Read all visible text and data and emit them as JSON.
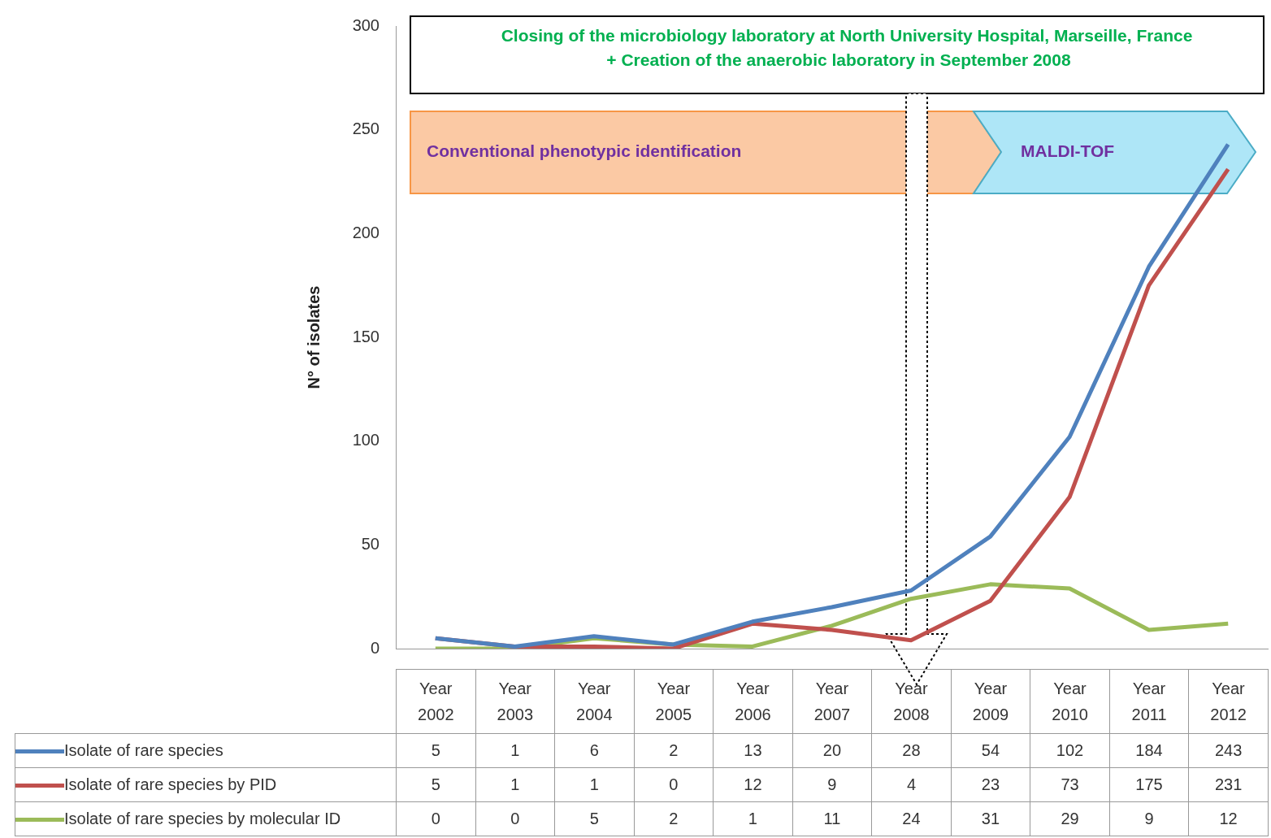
{
  "chart_data": {
    "type": "line",
    "ylabel": "N° of isolates",
    "categories": [
      "Year 2002",
      "Year 2003",
      "Year 2004",
      "Year 2005",
      "Year 2006",
      "Year 2007",
      "Year 2008",
      "Year 2009",
      "Year 2010",
      "Year 2011",
      "Year 2012"
    ],
    "series": [
      {
        "name": "Isolate of rare species",
        "color": "#4f81bd",
        "values": [
          5,
          1,
          6,
          2,
          13,
          20,
          28,
          54,
          102,
          184,
          243
        ]
      },
      {
        "name": "Isolate of rare species by PID",
        "color": "#c0504d",
        "values": [
          5,
          1,
          1,
          0,
          12,
          9,
          4,
          23,
          73,
          175,
          231
        ]
      },
      {
        "name": "Isolate of rare species by molecular ID",
        "color": "#9bbb59",
        "values": [
          0,
          0,
          5,
          2,
          1,
          11,
          24,
          31,
          29,
          9,
          12
        ]
      }
    ],
    "ylim": [
      0,
      300
    ],
    "yticks": [
      0,
      50,
      100,
      150,
      200,
      250,
      300
    ],
    "grid": false,
    "marker": "none",
    "legend": "bottom left",
    "data_labels": true,
    "annotations": [
      "Closing of the microbiology laboratory at North University Hospital, Marseille, France",
      "+ Creation of the anaerobic laboratory in September 2008",
      "Conventional phenotypic identification",
      "MALDI-TOF"
    ]
  }
}
